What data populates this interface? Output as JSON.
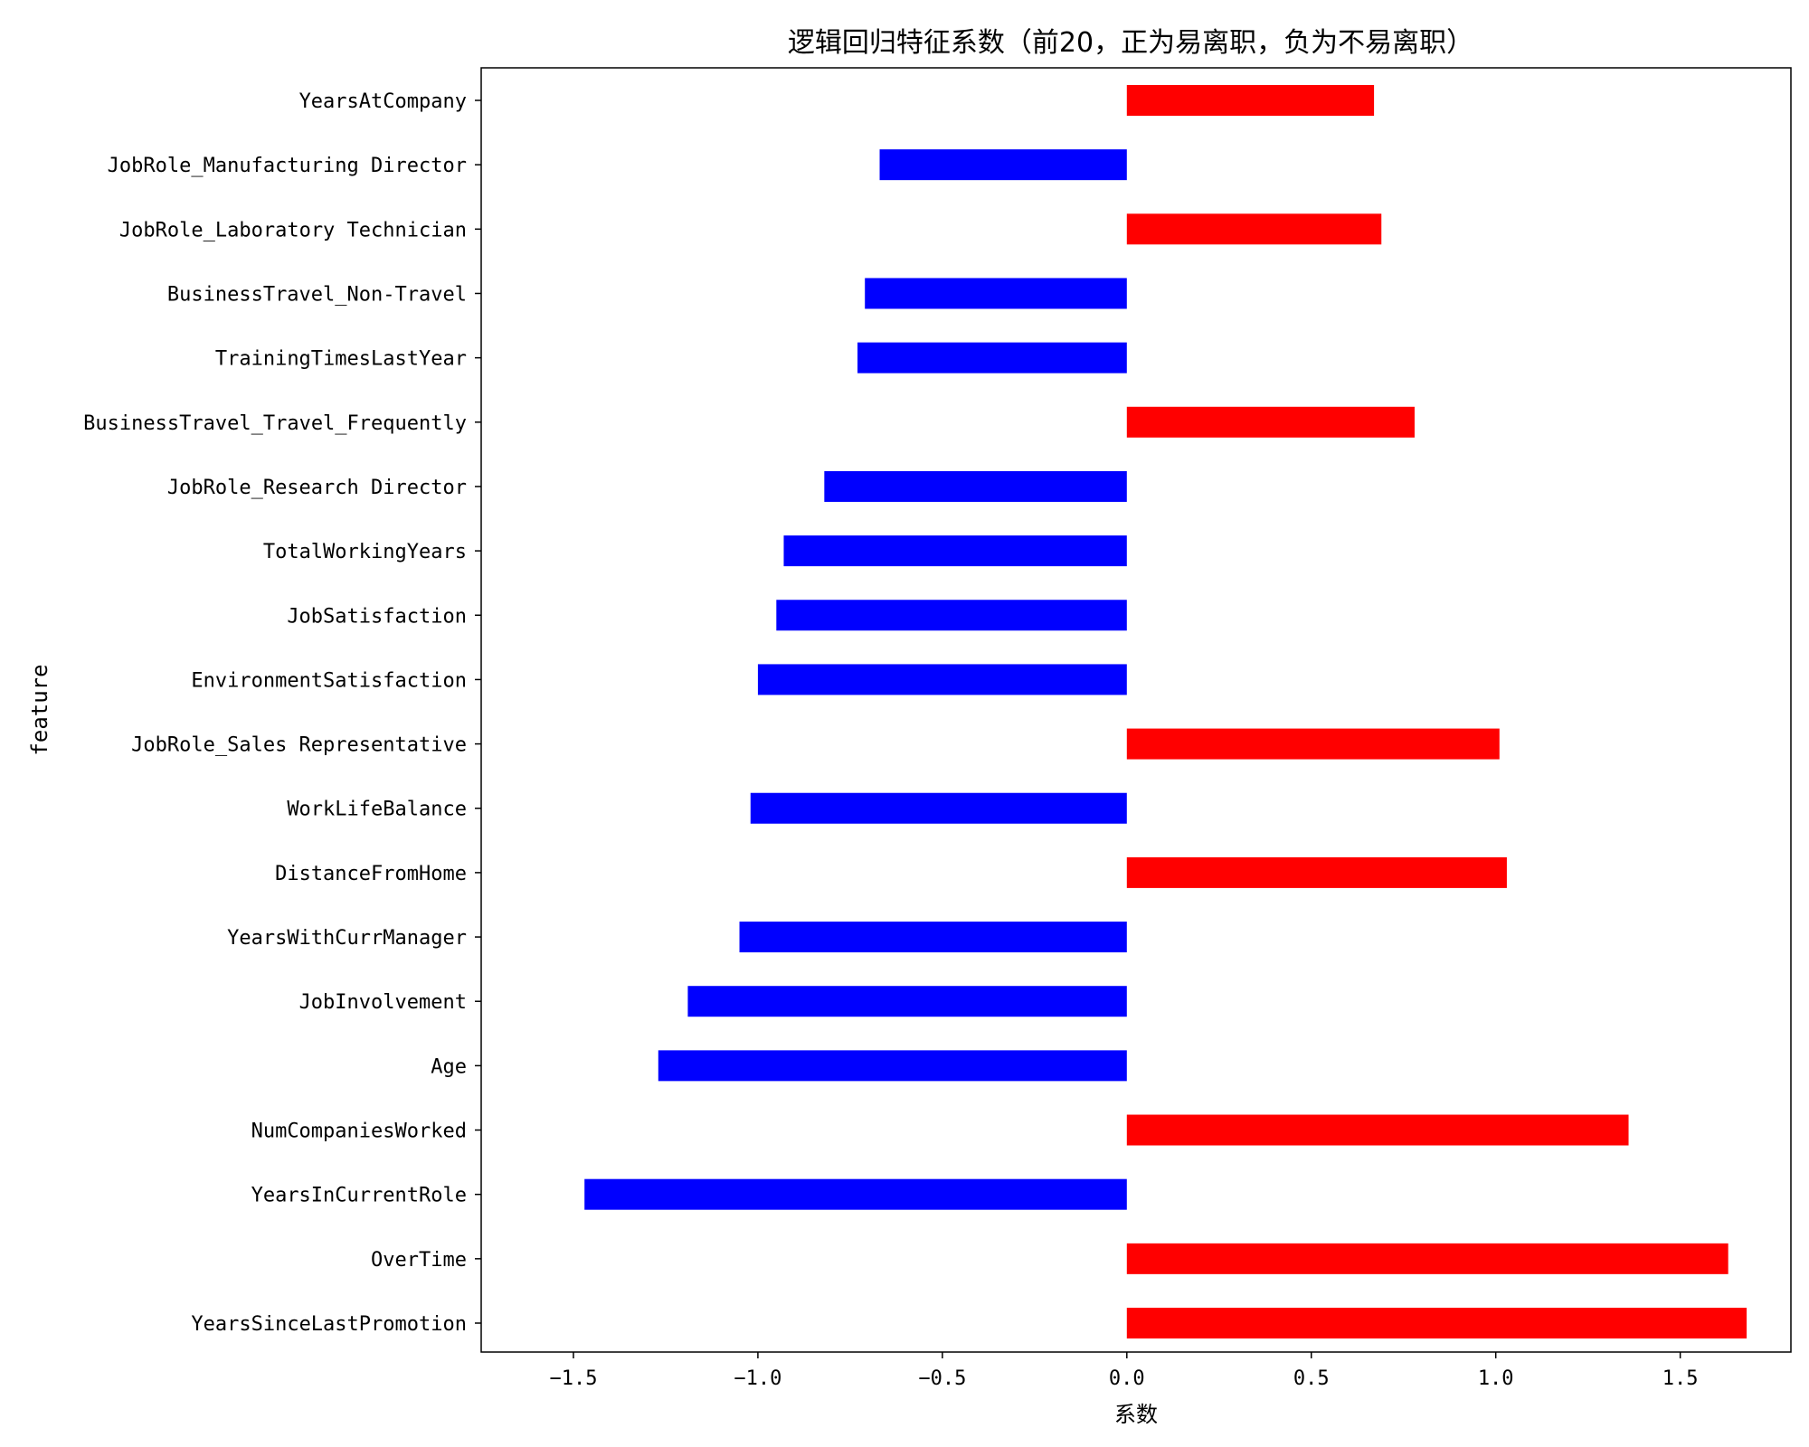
{
  "chart_data": {
    "type": "bar",
    "orientation": "horizontal",
    "title": "逻辑回归特征系数（前20，正为易离职，负为不易离职）",
    "xlabel": "系数",
    "ylabel": "feature",
    "xlim": [
      -1.75,
      1.8
    ],
    "xticks": [
      -1.5,
      -1.0,
      -0.5,
      0.0,
      0.5,
      1.0,
      1.5
    ],
    "xtick_labels": [
      "−1.5",
      "−1.0",
      "−0.5",
      "0.0",
      "0.5",
      "1.0",
      "1.5"
    ],
    "grid": false,
    "colors": {
      "positive": "#ff0000",
      "negative": "#0000ff"
    },
    "categories": [
      "YearsAtCompany",
      "JobRole_Manufacturing Director",
      "JobRole_Laboratory Technician",
      "BusinessTravel_Non-Travel",
      "TrainingTimesLastYear",
      "BusinessTravel_Travel_Frequently",
      "JobRole_Research Director",
      "TotalWorkingYears",
      "JobSatisfaction",
      "EnvironmentSatisfaction",
      "JobRole_Sales Representative",
      "WorkLifeBalance",
      "DistanceFromHome",
      "YearsWithCurrManager",
      "JobInvolvement",
      "Age",
      "NumCompaniesWorked",
      "YearsInCurrentRole",
      "OverTime",
      "YearsSinceLastPromotion"
    ],
    "values": [
      0.67,
      -0.67,
      0.69,
      -0.71,
      -0.73,
      0.78,
      -0.82,
      -0.93,
      -0.95,
      -1.0,
      1.01,
      -1.02,
      1.03,
      -1.05,
      -1.19,
      -1.27,
      1.36,
      -1.47,
      1.63,
      1.68
    ]
  }
}
